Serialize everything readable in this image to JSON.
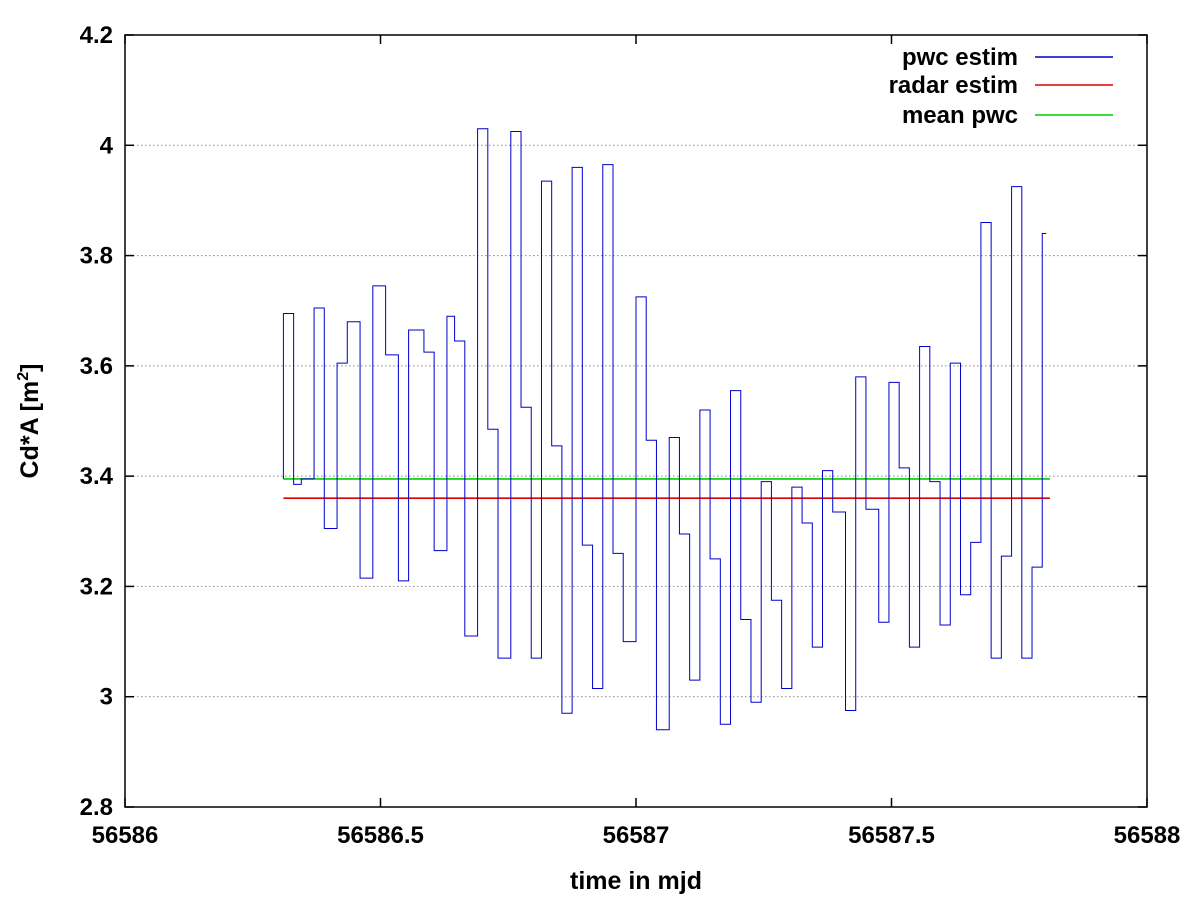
{
  "chart_data": {
    "type": "line",
    "xlabel": "time in mjd",
    "ylabel_main": "Cd*A [m",
    "ylabel_sup": "2",
    "ylabel_close": "]",
    "xlim": [
      56586,
      56588
    ],
    "ylim": [
      2.8,
      4.2
    ],
    "xticks": [
      56586,
      56586.5,
      56587,
      56587.5,
      56588
    ],
    "xtick_labels": [
      "56586",
      "56586.5",
      "56587",
      "56587.5",
      "56588"
    ],
    "yticks": [
      2.8,
      3.0,
      3.2,
      3.4,
      3.6,
      3.8,
      4.0,
      4.2
    ],
    "ytick_labels": [
      "2.8",
      "3",
      "3.2",
      "3.4",
      "3.6",
      "3.8",
      "4",
      "4.2"
    ],
    "grid": "horizontal dotted",
    "legend_position": "top-right",
    "series": [
      {
        "name": "pwc estim",
        "color": "#0000cc",
        "style": "step",
        "x": [
          56586.31,
          56586.33,
          56586.345,
          56586.37,
          56586.39,
          56586.415,
          56586.435,
          56586.46,
          56586.485,
          56586.51,
          56586.535,
          56586.555,
          56586.585,
          56586.605,
          56586.63,
          56586.645,
          56586.665,
          56586.69,
          56586.71,
          56586.73,
          56586.755,
          56586.775,
          56586.795,
          56586.815,
          56586.835,
          56586.855,
          56586.875,
          56586.895,
          56586.915,
          56586.935,
          56586.955,
          56586.975,
          56587.0,
          56587.02,
          56587.04,
          56587.065,
          56587.085,
          56587.105,
          56587.125,
          56587.145,
          56587.165,
          56587.185,
          56587.205,
          56587.225,
          56587.245,
          56587.265,
          56587.285,
          56587.305,
          56587.325,
          56587.345,
          56587.365,
          56587.385,
          56587.41,
          56587.43,
          56587.45,
          56587.475,
          56587.495,
          56587.515,
          56587.535,
          56587.555,
          56587.575,
          56587.595,
          56587.615,
          56587.635,
          56587.655,
          56587.675,
          56587.695,
          56587.715,
          56587.735,
          56587.755,
          56587.775,
          56587.795
        ],
        "y": [
          3.695,
          3.385,
          3.395,
          3.705,
          3.305,
          3.605,
          3.68,
          3.215,
          3.745,
          3.62,
          3.21,
          3.665,
          3.625,
          3.265,
          3.69,
          3.645,
          3.11,
          4.03,
          3.485,
          3.07,
          4.025,
          3.525,
          3.07,
          3.935,
          3.455,
          2.97,
          3.96,
          3.275,
          3.015,
          3.965,
          3.26,
          3.1,
          3.725,
          3.465,
          2.94,
          3.47,
          3.295,
          3.03,
          3.52,
          3.25,
          2.95,
          3.555,
          3.14,
          2.99,
          3.39,
          3.175,
          3.015,
          3.38,
          3.315,
          3.09,
          3.41,
          3.335,
          2.975,
          3.58,
          3.34,
          3.135,
          3.57,
          3.415,
          3.09,
          3.635,
          3.39,
          3.13,
          3.605,
          3.185,
          3.28,
          3.86,
          3.07,
          3.255,
          3.925,
          3.07,
          3.235,
          3.84
        ]
      },
      {
        "name": "radar estim",
        "color": "#dd0000",
        "style": "line",
        "x": [
          56586.31,
          56587.81
        ],
        "y": [
          3.36,
          3.36
        ]
      },
      {
        "name": "mean pwc",
        "color": "#00cc00",
        "style": "line",
        "x": [
          56586.31,
          56587.81
        ],
        "y": [
          3.395,
          3.395
        ]
      }
    ]
  }
}
